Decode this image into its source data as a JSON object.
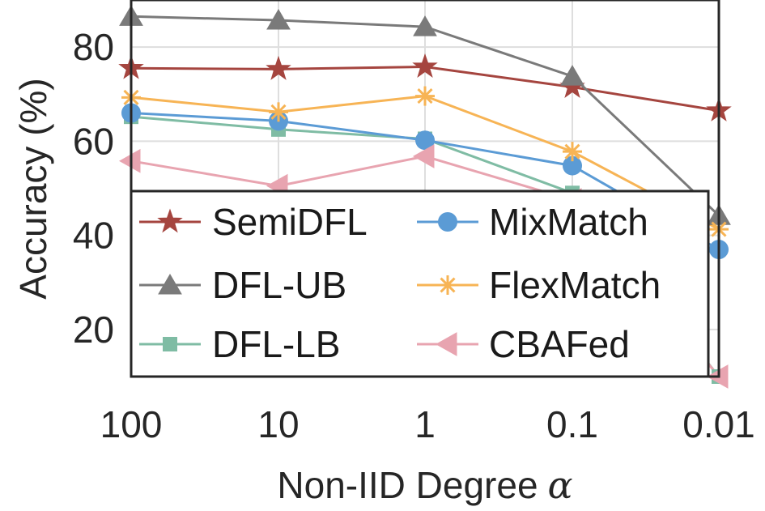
{
  "chart_data": {
    "type": "line",
    "xlabel": "Non-IID Degree",
    "xlabel_symbol": "α",
    "ylabel": "Accuracy (%)",
    "categories": [
      "100",
      "10",
      "1",
      "0.1",
      "0.01"
    ],
    "ylim": [
      10,
      90
    ],
    "yticks": [
      "20",
      "40",
      "60",
      "80"
    ],
    "ytick_values": [
      20,
      40,
      60,
      80
    ],
    "grid": true,
    "legend_position": "lower-left",
    "series": [
      {
        "name": "SemiDFL",
        "values": [
          75.5,
          75.3,
          75.8,
          71.5,
          66.5
        ],
        "color": "#a5453f",
        "marker": "star"
      },
      {
        "name": "DFL-UB",
        "values": [
          86.5,
          85.7,
          84.3,
          73.8,
          44.2
        ],
        "color": "#7a7a7a",
        "marker": "triangle-up"
      },
      {
        "name": "DFL-LB",
        "values": [
          65.2,
          62.5,
          60.5,
          49.0,
          10.0
        ],
        "color": "#7fbca4",
        "marker": "square"
      },
      {
        "name": "MixMatch",
        "values": [
          66.0,
          64.3,
          60.2,
          54.8,
          37.0
        ],
        "color": "#5b9bd5",
        "marker": "circle"
      },
      {
        "name": "FlexMatch",
        "values": [
          69.3,
          66.2,
          69.6,
          57.8,
          41.3
        ],
        "color": "#f7b455",
        "marker": "asterisk"
      },
      {
        "name": "CBAFed",
        "values": [
          55.8,
          50.5,
          56.8,
          47.5,
          10.0
        ],
        "color": "#e8a4b0",
        "marker": "triangle-left"
      }
    ]
  }
}
